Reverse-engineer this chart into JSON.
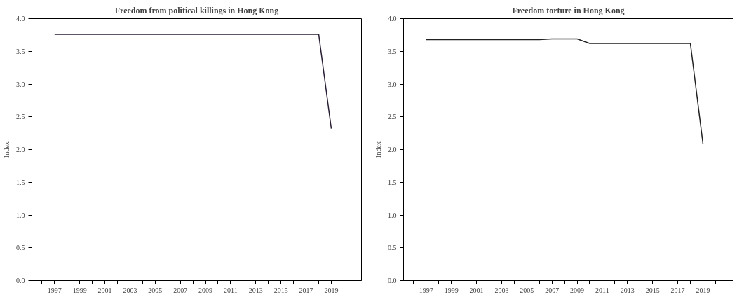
{
  "chart_data": [
    {
      "type": "line",
      "title": "Freedom from political killings in Hong Kong",
      "ylabel": "Index",
      "x": [
        1997,
        1998,
        1999,
        2000,
        2001,
        2002,
        2003,
        2004,
        2005,
        2006,
        2007,
        2008,
        2009,
        2010,
        2011,
        2012,
        2013,
        2014,
        2015,
        2016,
        2017,
        2018,
        2019
      ],
      "series": [
        {
          "color": "#2a1f35",
          "values": [
            3.76,
            3.76,
            3.76,
            3.76,
            3.76,
            3.76,
            3.76,
            3.76,
            3.76,
            3.76,
            3.76,
            3.76,
            3.76,
            3.76,
            3.76,
            3.76,
            3.76,
            3.76,
            3.76,
            3.76,
            3.76,
            3.76,
            2.32
          ]
        }
      ],
      "xlim": [
        1995.2,
        2021.4
      ],
      "xticks": [
        {
          "value": 1996,
          "label": null
        },
        1997,
        {
          "value": 1998,
          "label": null
        },
        1999,
        {
          "value": 2000,
          "label": null
        },
        2001,
        {
          "value": 2002,
          "label": null
        },
        2003,
        {
          "value": 2004,
          "label": null
        },
        2005,
        {
          "value": 2006,
          "label": null
        },
        2007,
        {
          "value": 2008,
          "label": null
        },
        2009,
        {
          "value": 2010,
          "label": null
        },
        2011,
        {
          "value": 2012,
          "label": null
        },
        2013,
        {
          "value": 2014,
          "label": null
        },
        2015,
        {
          "value": 2016,
          "label": null
        },
        2017,
        {
          "value": 2018,
          "label": null
        },
        2019,
        {
          "value": 2020,
          "label": null
        }
      ],
      "ylim": [
        0,
        4
      ],
      "yticks": [
        {
          "value": 0,
          "label": "0.0"
        },
        {
          "value": 0.5,
          "label": "0.5"
        },
        {
          "value": 1,
          "label": "1.0"
        },
        {
          "value": 1.5,
          "label": "1.5"
        },
        {
          "value": 2,
          "label": "2.0"
        },
        {
          "value": 2.5,
          "label": "2.5"
        },
        {
          "value": 3,
          "label": "3.0"
        },
        {
          "value": 3.5,
          "label": "3.5"
        },
        {
          "value": 4,
          "label": "4.0"
        }
      ],
      "grid": false
    },
    {
      "type": "line",
      "title": "Freedom torture in Hong Kong",
      "ylabel": "Index",
      "x": [
        1997,
        1998,
        1999,
        2000,
        2001,
        2002,
        2003,
        2004,
        2005,
        2006,
        2007,
        2008,
        2009,
        2010,
        2011,
        2012,
        2013,
        2014,
        2015,
        2016,
        2017,
        2018,
        2019
      ],
      "series": [
        {
          "color": "#222222",
          "values": [
            3.68,
            3.68,
            3.68,
            3.68,
            3.68,
            3.68,
            3.68,
            3.68,
            3.68,
            3.68,
            3.69,
            3.69,
            3.69,
            3.62,
            3.62,
            3.62,
            3.62,
            3.62,
            3.62,
            3.62,
            3.62,
            3.62,
            2.09
          ]
        }
      ],
      "xlim": [
        1995.2,
        2021.4
      ],
      "xticks": [
        {
          "value": 1996,
          "label": null
        },
        1997,
        {
          "value": 1998,
          "label": null
        },
        1999,
        {
          "value": 2000,
          "label": null
        },
        2001,
        {
          "value": 2002,
          "label": null
        },
        2003,
        {
          "value": 2004,
          "label": null
        },
        2005,
        {
          "value": 2006,
          "label": null
        },
        2007,
        {
          "value": 2008,
          "label": null
        },
        2009,
        {
          "value": 2010,
          "label": null
        },
        2011,
        {
          "value": 2012,
          "label": null
        },
        2013,
        {
          "value": 2014,
          "label": null
        },
        2015,
        {
          "value": 2016,
          "label": null
        },
        2017,
        {
          "value": 2018,
          "label": null
        },
        2019,
        {
          "value": 2020,
          "label": null
        }
      ],
      "ylim": [
        0,
        4
      ],
      "yticks": [
        {
          "value": 0,
          "label": "0.0"
        },
        {
          "value": 0.5,
          "label": "0.5"
        },
        {
          "value": 1,
          "label": "1.0"
        },
        {
          "value": 1.5,
          "label": "1.5"
        },
        {
          "value": 2,
          "label": "2.0"
        },
        {
          "value": 2.5,
          "label": "2.5"
        },
        {
          "value": 3,
          "label": "3.0"
        },
        {
          "value": 3.5,
          "label": "3.5"
        },
        {
          "value": 4,
          "label": "4.0"
        }
      ],
      "grid": false
    }
  ]
}
